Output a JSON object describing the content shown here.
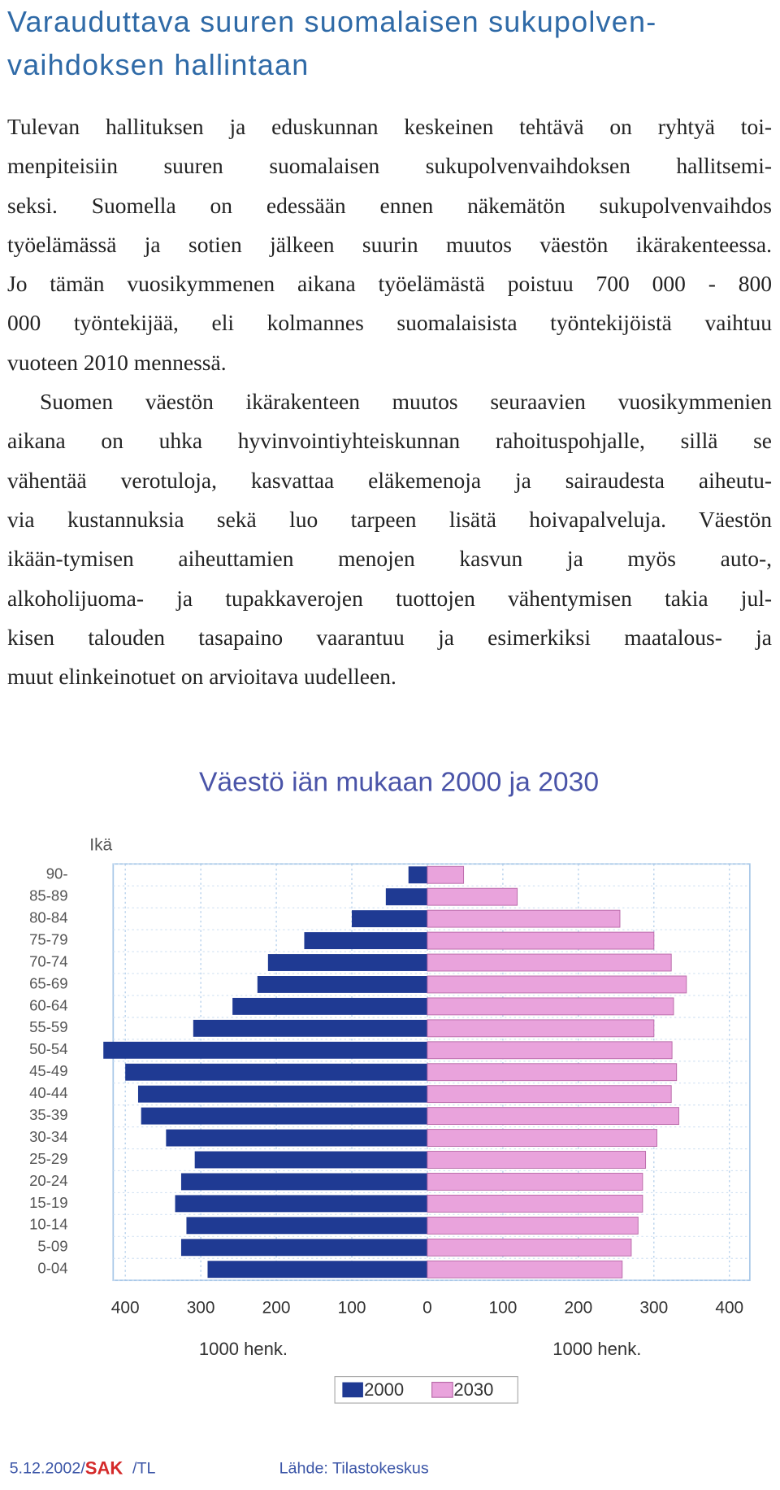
{
  "header": {
    "title": [
      "Varauduttava suuren suomalaisen sukupolven-",
      "vaihdoksen hallintaan"
    ]
  },
  "paragraphs": [
    [
      "Tulevan hallituksen ja eduskunnan keskeinen tehtävä on ryhtyä toi-",
      "menpiteisiin suuren suomalaisen sukupolvenvaihdoksen hallitsemi-",
      "seksi. Suomella on edessään ennen näkemätön sukupolvenvaihdos",
      "työelämässä ja sotien jälkeen suurin muutos väestön ikärakenteessa.",
      "Jo tämän vuosikymmenen aikana työelämästä poistuu 700 000 - 800",
      "000 työntekijää, eli kolmannes suomalaisista työntekijöistä vaihtuu",
      "vuoteen 2010 mennessä."
    ],
    [
      "Suomen väestön ikärakenteen muutos seuraavien vuosikymmenien",
      "aikana on uhka hyvinvointiyhteiskunnan rahoituspohjalle, sillä se",
      "vähentää verotuloja, kasvattaa eläkemenoja ja sairaudesta aiheutu-",
      "via kustannuksia sekä luo tarpeen lisätä hoivapalveluja. Väestön",
      "ikään-tymisen aiheuttamien menojen kasvun ja myös auto-,",
      "alkoholijuoma- ja tupakkaverojen tuottojen vähentymisen takia jul-",
      "kisen talouden tasapaino vaarantuu ja esimerkiksi maatalous- ja",
      "muut elinkeinotuet on arvioitava uudelleen."
    ]
  ],
  "chart_data": {
    "type": "pyramid",
    "title": "Väestö iän mukaan 2000 ja 2030",
    "y_label": "Ikä",
    "x_labels": [
      "1000 henk.",
      "1000 henk."
    ],
    "categories": [
      "0-04",
      "5-09",
      "10-14",
      "15-19",
      "20-24",
      "25-29",
      "30-34",
      "35-39",
      "40-44",
      "45-49",
      "50-54",
      "55-59",
      "60-64",
      "65-69",
      "70-74",
      "75-79",
      "80-84",
      "85-89",
      "90-"
    ],
    "series": [
      {
        "name": "2000",
        "color": "#1f3a93",
        "values": [
          291,
          326,
          319,
          334,
          326,
          308,
          346,
          379,
          383,
          400,
          429,
          310,
          258,
          225,
          211,
          163,
          100,
          55,
          25
        ]
      },
      {
        "name": "2030",
        "color": "#e9a3dc",
        "values": [
          258,
          270,
          279,
          285,
          285,
          289,
          304,
          333,
          323,
          330,
          324,
          300,
          326,
          343,
          323,
          300,
          255,
          119,
          48
        ]
      }
    ],
    "xlim": [
      -416,
      427
    ],
    "xticks": [
      {
        "value": -400,
        "label": "400"
      },
      {
        "value": -300,
        "label": "300"
      },
      {
        "value": -200,
        "label": "200"
      },
      {
        "value": -100,
        "label": "100"
      },
      0,
      100,
      200,
      300,
      400
    ],
    "grid": true
  },
  "footer": {
    "date": "5.12.2002/",
    "org": "SAK",
    "author": "/TL",
    "source": "Lähde: Tilastokeskus"
  }
}
